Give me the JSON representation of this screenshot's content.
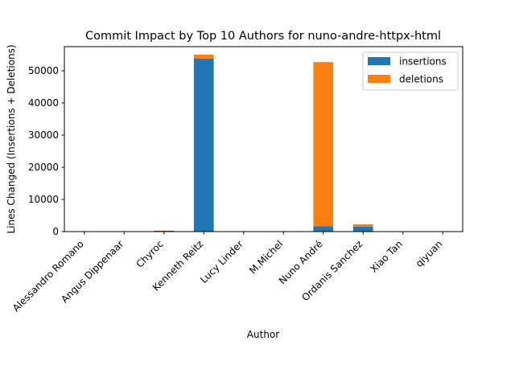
{
  "chart_data": {
    "type": "bar",
    "stacked": true,
    "title": "Commit Impact by Top 10 Authors for nuno-andre-httpx-html",
    "xlabel": "Author",
    "ylabel": "Lines Changed (Insertions + Deletions)",
    "categories": [
      "Alessandro Romano",
      "Angus Dippenaar",
      "Chyroc",
      "Kenneth Reitz",
      "Lucy Linder",
      "M.Michel",
      "Nuno André",
      "Ordanis Sanchez",
      "Xiao Tan",
      "qiyuan"
    ],
    "series": [
      {
        "name": "insertions",
        "color": "#1f77b4",
        "values": [
          20,
          30,
          250,
          53800,
          10,
          10,
          1700,
          1500,
          20,
          10
        ]
      },
      {
        "name": "deletions",
        "color": "#ff7f0e",
        "values": [
          10,
          20,
          50,
          1200,
          5,
          5,
          51000,
          800,
          10,
          5
        ]
      }
    ],
    "ylim": [
      0,
      57500
    ],
    "yticks": [
      0,
      10000,
      20000,
      30000,
      40000,
      50000
    ],
    "grid": false,
    "legend": "top-right"
  }
}
